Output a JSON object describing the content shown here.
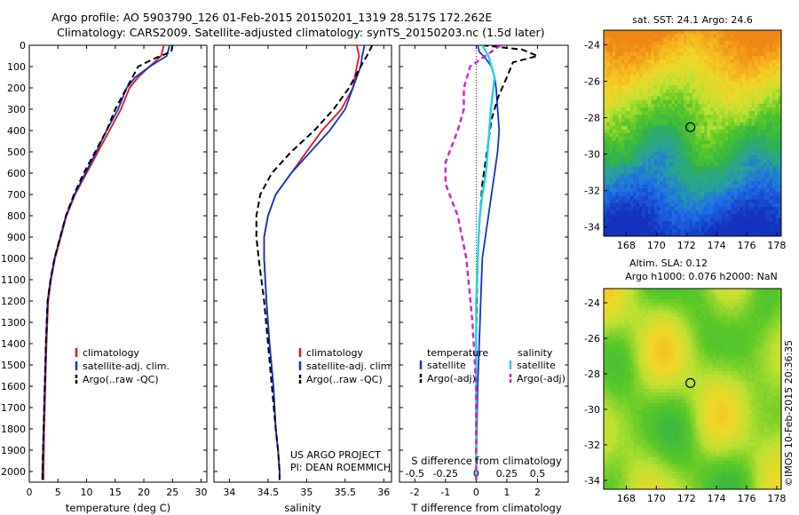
{
  "title_line1": "Argo profile: AO 5903790_126 01-Feb-2015 20150201_1319 28.517S 172.262E",
  "title_line2": "Climatology: CARS2009. Satellite-adjusted climatology: synTS_20150203.nc (1.5d later)",
  "credit_lines": [
    "US ARGO PROJECT",
    "PI: DEAN ROEMMICH"
  ],
  "footer_vertical": "©IMOS 10-Feb-2015 20:36:35",
  "colors": {
    "climatology": "#e8121a",
    "satellite": "#1133cc",
    "argo": "#000000",
    "sat_salinity": "#22d3e0",
    "argo_salinity": "#d21ed2"
  },
  "chart_data": [
    {
      "type": "line",
      "id": "temperature",
      "xlabel": "temperature (deg C)",
      "ylabel": "",
      "xlim": [
        0,
        31
      ],
      "ylim": [
        2050,
        0
      ],
      "xticks": [
        0,
        5,
        10,
        15,
        20,
        25,
        30
      ],
      "yticks": [
        0,
        100,
        200,
        300,
        400,
        500,
        600,
        700,
        800,
        900,
        1000,
        1100,
        1200,
        1300,
        1400,
        1500,
        1600,
        1700,
        1800,
        1900,
        2000
      ],
      "legend": [
        "climatology",
        "satellite-adj. clim.",
        "Argo(..raw -QC)"
      ],
      "legend_placement": "lower-center",
      "series": [
        {
          "name": "climatology",
          "x": [
            23.5,
            23.0,
            21.0,
            19.0,
            17.5,
            16.0,
            14.0,
            12.0,
            10.0,
            8.0,
            6.5,
            5.5,
            4.5,
            3.8,
            3.3,
            3.0,
            2.8,
            2.6,
            2.5,
            2.5
          ],
          "y": [
            0,
            50,
            100,
            150,
            200,
            300,
            400,
            500,
            600,
            700,
            800,
            900,
            1000,
            1100,
            1200,
            1400,
            1600,
            1800,
            2000,
            2040
          ]
        },
        {
          "name": "satellite-adj. clim.",
          "x": [
            24.5,
            24.0,
            21.0,
            18.5,
            17.0,
            15.5,
            13.5,
            11.7,
            9.8,
            7.9,
            6.4,
            5.4,
            4.4,
            3.7,
            3.2,
            2.9,
            2.7,
            2.5,
            2.3,
            2.3
          ],
          "y": [
            0,
            50,
            100,
            150,
            200,
            300,
            400,
            500,
            600,
            700,
            800,
            900,
            1000,
            1100,
            1200,
            1400,
            1600,
            1800,
            2000,
            2040
          ]
        },
        {
          "name": "Argo(..raw -QC)",
          "x": [
            25.0,
            24.8,
            22.0,
            19.0,
            17.0,
            15.0,
            13.5,
            11.5,
            9.5,
            7.8,
            6.4,
            5.4,
            4.4,
            3.7,
            3.2,
            2.9,
            2.7,
            2.5,
            2.3,
            2.3
          ],
          "y": [
            0,
            30,
            60,
            100,
            200,
            300,
            400,
            500,
            600,
            700,
            800,
            900,
            1000,
            1100,
            1200,
            1400,
            1600,
            1800,
            2000,
            2040
          ]
        }
      ]
    },
    {
      "type": "line",
      "id": "salinity",
      "xlabel": "salinity",
      "ylabel": "",
      "xlim": [
        33.8,
        36.1
      ],
      "ylim": [
        2050,
        0
      ],
      "xticks": [
        34,
        34.5,
        35,
        35.5,
        36
      ],
      "legend": [
        "climatology",
        "satellite-adj. clim.",
        "Argo(..raw -QC)"
      ],
      "legend_placement": "lower-center",
      "series": [
        {
          "name": "climatology",
          "x": [
            35.65,
            35.68,
            35.65,
            35.6,
            35.45,
            35.2,
            35.0,
            34.8,
            34.6,
            34.5,
            34.45,
            34.45,
            34.48,
            34.52,
            34.57,
            34.6,
            34.63,
            34.65,
            34.65
          ],
          "y": [
            0,
            50,
            100,
            200,
            300,
            400,
            500,
            600,
            700,
            800,
            900,
            1000,
            1200,
            1400,
            1600,
            1800,
            1900,
            2000,
            2040
          ]
        },
        {
          "name": "satellite-adj. clim.",
          "x": [
            35.75,
            35.72,
            35.7,
            35.6,
            35.5,
            35.3,
            35.05,
            34.8,
            34.6,
            34.5,
            34.45,
            34.45,
            34.48,
            34.52,
            34.57,
            34.6,
            34.63,
            34.65,
            34.65
          ],
          "y": [
            0,
            50,
            100,
            200,
            300,
            400,
            500,
            600,
            700,
            800,
            900,
            1000,
            1200,
            1400,
            1600,
            1800,
            1900,
            2000,
            2040
          ]
        },
        {
          "name": "Argo(..raw -QC)",
          "x": [
            35.85,
            35.78,
            35.7,
            35.55,
            35.35,
            35.1,
            34.8,
            34.55,
            34.4,
            34.35,
            34.35,
            34.38,
            34.45,
            34.5,
            34.55,
            34.6,
            34.63,
            34.65,
            34.65
          ],
          "y": [
            0,
            50,
            100,
            200,
            300,
            400,
            500,
            600,
            700,
            800,
            900,
            1000,
            1200,
            1400,
            1600,
            1800,
            1900,
            2000,
            2040
          ]
        }
      ]
    },
    {
      "type": "line",
      "id": "difference",
      "xlabel": "T difference from climatology",
      "xlabel2": "S difference from climatology",
      "xlim": [
        -2.5,
        3.0
      ],
      "xticks": [
        -2,
        -1,
        0,
        1,
        2
      ],
      "xlim_salinity": [
        -0.625,
        0.75
      ],
      "xticks_salinity": [
        -0.5,
        -0.25,
        0,
        0.25,
        0.5
      ],
      "ylim": [
        2050,
        0
      ],
      "legend_header_left": "temperature",
      "legend_header_right": "salinity",
      "legend": [
        "satellite",
        "Argo(-adj)",
        "satellite",
        "Argo(-adj)"
      ],
      "legend_placement": "middle",
      "series": [
        {
          "name": "temperature satellite",
          "x": [
            0.05,
            0.1,
            0.3,
            0.5,
            0.6,
            0.65,
            0.7,
            0.75,
            0.7,
            0.6,
            0.5,
            0.4,
            0.3,
            0.2,
            0.15,
            0.1,
            0.05,
            0.02,
            0.0,
            0.0,
            0.0
          ],
          "y": [
            0,
            30,
            60,
            100,
            150,
            200,
            300,
            400,
            500,
            600,
            700,
            800,
            900,
            1000,
            1200,
            1400,
            1600,
            1800,
            2000,
            2040,
            2040
          ]
        },
        {
          "name": "temperature Argo(-adj)",
          "x": [
            0.2,
            1.5,
            2.0,
            1.2,
            1.0,
            0.7,
            0.5,
            0.4,
            0.3,
            0.2,
            0.15,
            0.1,
            0.05,
            0.02,
            0.0,
            0.0,
            0.0
          ],
          "y": [
            0,
            20,
            50,
            80,
            150,
            250,
            350,
            450,
            550,
            650,
            750,
            850,
            1000,
            1200,
            1400,
            1800,
            2040
          ]
        },
        {
          "name": "salinity satellite",
          "x": [
            0.05,
            0.1,
            0.15,
            0.12,
            0.1,
            0.08,
            0.05,
            0.03,
            0.02,
            0.0,
            0.0,
            0.0
          ],
          "y": [
            0,
            50,
            150,
            300,
            450,
            600,
            700,
            800,
            900,
            1200,
            1600,
            2040
          ]
        },
        {
          "name": "salinity Argo(-adj)",
          "x": [
            0.2,
            0.05,
            -0.05,
            -0.1,
            -0.1,
            -0.15,
            -0.25,
            -0.25,
            -0.15,
            -0.08,
            -0.03,
            0.0,
            0.0
          ],
          "y": [
            0,
            60,
            100,
            200,
            300,
            400,
            550,
            650,
            800,
            1000,
            1300,
            1600,
            2040
          ]
        }
      ]
    },
    {
      "type": "heatmap",
      "id": "sst-map",
      "title": "sat. SST: 24.1 Argo: 24.6",
      "xlim": [
        166.5,
        178.3
      ],
      "ylim": [
        -34.5,
        -23.2
      ],
      "xticks": [
        168,
        170,
        172,
        174,
        176,
        178
      ],
      "yticks": [
        -24,
        -26,
        -28,
        -30,
        -32,
        -34
      ],
      "marker": {
        "lon": 172.262,
        "lat": -28.517
      }
    },
    {
      "type": "heatmap",
      "id": "sla-map",
      "title_line1": "Altim. SLA: 0.12",
      "title_line2": "Argo h1000: 0.076 h2000: NaN",
      "xlim": [
        166.5,
        178.3
      ],
      "ylim": [
        -34.5,
        -23.2
      ],
      "xticks": [
        168,
        170,
        172,
        174,
        176,
        178
      ],
      "yticks": [
        -24,
        -26,
        -28,
        -30,
        -32,
        -34
      ],
      "marker": {
        "lon": 172.262,
        "lat": -28.517
      }
    }
  ]
}
